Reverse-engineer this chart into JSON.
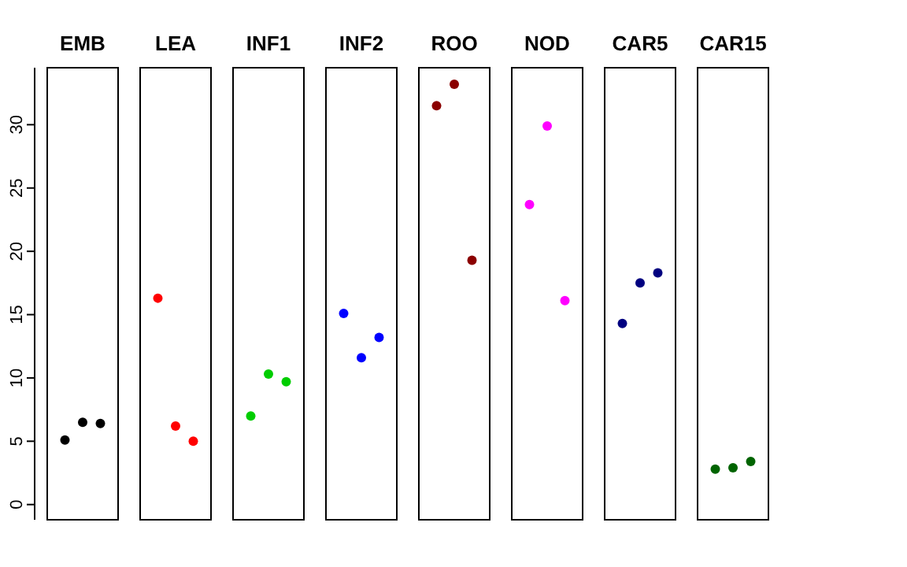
{
  "chart_data": {
    "type": "scatter",
    "categories": [
      "EMB",
      "LEA",
      "INF1",
      "INF2",
      "ROO",
      "NOD",
      "CAR5",
      "CAR15"
    ],
    "marker": "circle",
    "ylim": [
      -1.2,
      34.5
    ],
    "yticks": [
      0,
      5,
      10,
      15,
      20,
      25,
      30
    ],
    "series": [
      {
        "colors": [
          "#000000",
          "#ff0000",
          "#00cd00",
          "#0000ff",
          "#8b0000",
          "#ff00ff",
          "#000080",
          "#006400"
        ],
        "values": [
          5.1,
          16.3,
          7.0,
          15.1,
          31.5,
          23.7,
          14.3,
          2.8
        ]
      },
      {
        "colors": [
          "#000000",
          "#ff0000",
          "#00cd00",
          "#0000ff",
          "#8b0000",
          "#ff00ff",
          "#000080",
          "#006400"
        ],
        "values": [
          6.5,
          6.2,
          10.3,
          11.6,
          33.2,
          29.9,
          17.5,
          2.9
        ]
      },
      {
        "colors": [
          "#000000",
          "#ff0000",
          "#00cd00",
          "#0000ff",
          "#8b0000",
          "#ff00ff",
          "#000080",
          "#006400"
        ],
        "values": [
          6.4,
          5.0,
          9.7,
          13.2,
          19.3,
          16.1,
          18.3,
          3.4
        ]
      }
    ]
  }
}
